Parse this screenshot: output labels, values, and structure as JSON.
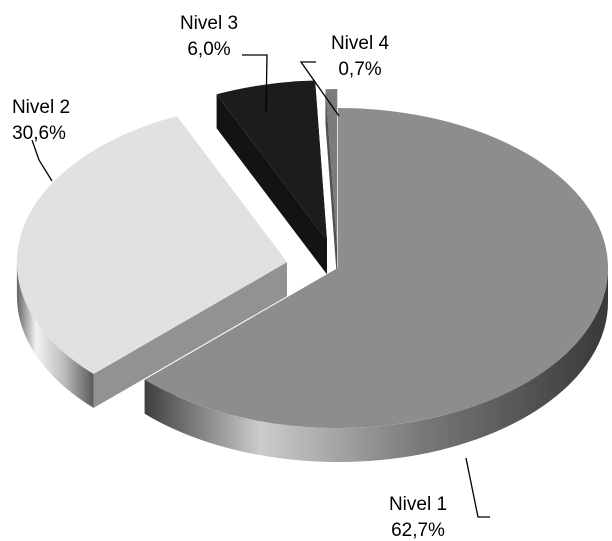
{
  "chart_data": {
    "type": "pie",
    "style": "3d-exploded",
    "legend": "none",
    "slices": [
      {
        "name": "Nivel 1",
        "label": "62,7%",
        "value": 62.7,
        "color": "#8c8d8f"
      },
      {
        "name": "Nivel 2",
        "label": "30,6%",
        "value": 30.6,
        "color": "#e0e1e3"
      },
      {
        "name": "Nivel 3",
        "label": "6,0%",
        "value": 6.0,
        "color": "#1e1b1c"
      },
      {
        "name": "Nivel 4",
        "label": "0,7%",
        "value": 0.7,
        "color": "#7a7b7d"
      }
    ]
  }
}
